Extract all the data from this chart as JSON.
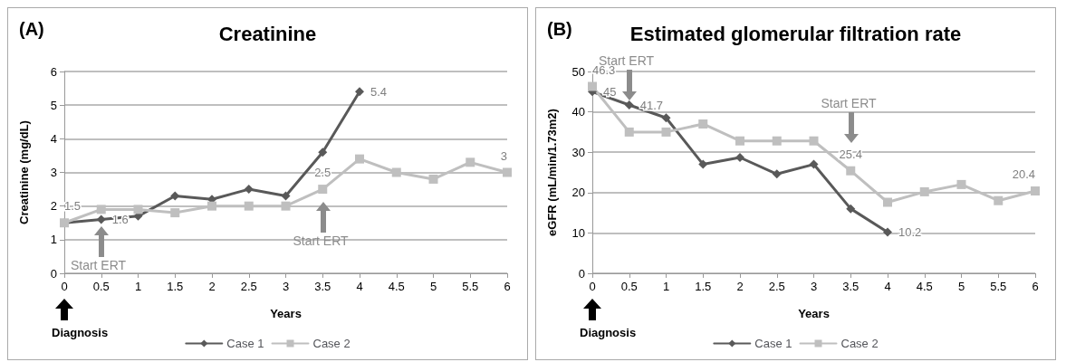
{
  "chart_data": [
    {
      "type": "line",
      "title": "Creatinine",
      "xlabel": "Years",
      "ylabel": "Creatinine (mg/dL)",
      "categories": [
        "0",
        "0.5",
        "1",
        "1.5",
        "2",
        "2.5",
        "3",
        "3.5",
        "4",
        "4.5",
        "5",
        "5.5",
        "6"
      ],
      "series": [
        {
          "name": "Case 1",
          "color": "#595959",
          "marker": "diamond",
          "values": [
            1.5,
            1.6,
            1.7,
            2.3,
            2.2,
            2.5,
            2.3,
            3.6,
            5.4,
            null,
            null,
            null,
            null
          ],
          "value_labels": [
            null,
            "1.6",
            null,
            null,
            null,
            null,
            null,
            null,
            "5.4",
            null,
            null,
            null,
            null
          ]
        },
        {
          "name": "Case 2",
          "color": "#bfbfbf",
          "marker": "square",
          "values": [
            1.5,
            1.9,
            1.9,
            1.8,
            2.0,
            2.0,
            2.0,
            2.5,
            3.4,
            3.0,
            2.8,
            3.3,
            3.0
          ],
          "value_labels": [
            "1.5",
            null,
            null,
            null,
            null,
            null,
            null,
            "2.5",
            null,
            null,
            null,
            null,
            "3"
          ]
        }
      ],
      "ylim": [
        0,
        6
      ],
      "yticks": [
        0,
        1,
        2,
        3,
        4,
        5,
        6
      ],
      "grid": "y",
      "legend": "bottom",
      "annotations": [
        "(A)",
        "Start ERT",
        "Start ERT",
        "Diagnosis"
      ]
    },
    {
      "type": "line",
      "title": "Estimated glomerular filtration rate",
      "xlabel": "Years",
      "ylabel": "eGFR (mL/min/1.73m2)",
      "categories": [
        "0",
        "0.5",
        "1",
        "1.5",
        "2",
        "2.5",
        "3",
        "3.5",
        "4",
        "4.5",
        "5",
        "5.5",
        "6"
      ],
      "series": [
        {
          "name": "Case 1",
          "color": "#595959",
          "marker": "diamond",
          "values": [
            45,
            41.7,
            38.5,
            27,
            28.7,
            24.6,
            27,
            16,
            10.2,
            null,
            null,
            null,
            null
          ],
          "value_labels": [
            "45",
            "41.7",
            null,
            null,
            null,
            null,
            null,
            null,
            "10.2",
            null,
            null,
            null,
            null
          ]
        },
        {
          "name": "Case 2",
          "color": "#bfbfbf",
          "marker": "square",
          "values": [
            46.3,
            35,
            35,
            37,
            32.8,
            32.8,
            32.8,
            25.4,
            17.6,
            20.2,
            22,
            18,
            20.4
          ],
          "value_labels": [
            "46.3",
            null,
            null,
            null,
            null,
            null,
            null,
            "25.4",
            null,
            null,
            null,
            null,
            "20.4"
          ]
        }
      ],
      "ylim": [
        0,
        50
      ],
      "yticks": [
        0,
        10,
        20,
        30,
        40,
        50
      ],
      "grid": "y",
      "legend": "bottom",
      "annotations": [
        "(B)",
        "Start ERT",
        "Start ERT",
        "Diagnosis"
      ]
    }
  ]
}
